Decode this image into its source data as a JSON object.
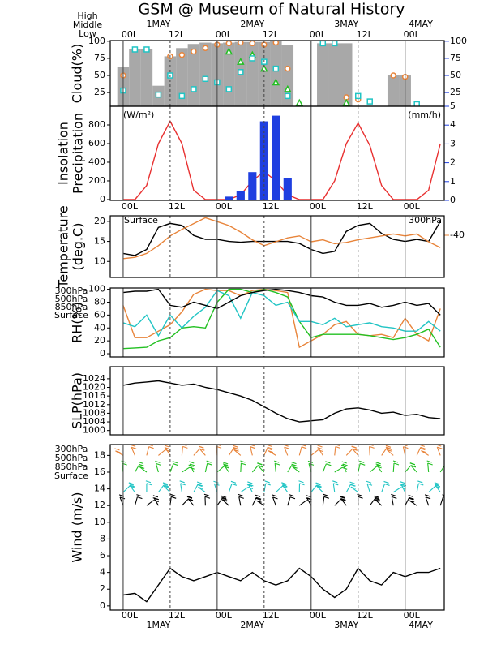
{
  "title": "GSM @ Museum of Natural History",
  "chart_data": [
    {
      "type": "cloud",
      "ylabel": [
        "Cloud(%)"
      ],
      "x": [
        0,
        3,
        6,
        9,
        12,
        15,
        18,
        21,
        24,
        27,
        30,
        33,
        36,
        39,
        42,
        45,
        48,
        51,
        54,
        57,
        60,
        63,
        66,
        69,
        72,
        75,
        78,
        81
      ],
      "xlim": [
        -3.3,
        82
      ],
      "xticks": [
        {
          "value": 0,
          "label": "00L"
        },
        {
          "value": 12,
          "label": "12L"
        },
        {
          "value": 24,
          "label": "00L"
        },
        {
          "value": 36,
          "label": "12L"
        },
        {
          "value": 48,
          "label": "00L"
        },
        {
          "value": 60,
          "label": "12L"
        },
        {
          "value": 72,
          "label": "00L"
        }
      ],
      "dates": [
        {
          "value": 9,
          "label": "1MAY"
        },
        {
          "value": 33,
          "label": "2MAY"
        },
        {
          "value": 57,
          "label": "3MAY"
        },
        {
          "value": 76,
          "label": "4MAY"
        }
      ],
      "ylim": [
        5,
        101
      ],
      "yticks": [
        25,
        50,
        75,
        100
      ],
      "y2lim": [
        5,
        101
      ],
      "y2ticks": [
        5,
        25,
        50,
        75,
        100
      ],
      "color": "#a8a8a8",
      "values": [
        62,
        88,
        88,
        35,
        78,
        90,
        96,
        98,
        97,
        98,
        99,
        99,
        99,
        100,
        95,
        5,
        5,
        97,
        97,
        97,
        5,
        5,
        5,
        50,
        50,
        5,
        5,
        5
      ],
      "series": [
        {
          "name": "High",
          "color": "#e8843a",
          "values": [
            50,
            null,
            null,
            null,
            78,
            80,
            85,
            90,
            95,
            97,
            98,
            97,
            95,
            98,
            60,
            null,
            null,
            null,
            null,
            18,
            15,
            null,
            null,
            50,
            48,
            null,
            null,
            null
          ]
        },
        {
          "name": "Middle",
          "color": "#22c022",
          "values": [
            null,
            null,
            null,
            null,
            null,
            null,
            null,
            null,
            null,
            85,
            70,
            80,
            60,
            40,
            30,
            10,
            null,
            null,
            null,
            10,
            null,
            null,
            null,
            null,
            null,
            null,
            null,
            null
          ]
        },
        {
          "name": "Low",
          "color": "#20c4c4",
          "values": [
            28,
            88,
            88,
            22,
            50,
            20,
            30,
            45,
            40,
            30,
            55,
            75,
            70,
            60,
            20,
            null,
            null,
            97,
            97,
            null,
            20,
            12,
            null,
            null,
            null,
            8,
            null,
            null
          ]
        }
      ]
    },
    {
      "type": "insolation",
      "ylabel": [
        "Insolation",
        "Precipitation"
      ],
      "y_unit": "(W/m²)",
      "y2_unit": "(mm/h)",
      "x": [
        0,
        3,
        6,
        9,
        12,
        15,
        18,
        21,
        24,
        27,
        30,
        33,
        36,
        39,
        42,
        45,
        48,
        51,
        54,
        57,
        60,
        63,
        66,
        69,
        72,
        75,
        78,
        81
      ],
      "xlim": [
        -3.3,
        82
      ],
      "xticks": [
        {
          "value": 0,
          "label": "00L"
        },
        {
          "value": 12,
          "label": "12L"
        },
        {
          "value": 24,
          "label": "00L"
        },
        {
          "value": 36,
          "label": "12L"
        },
        {
          "value": 48,
          "label": "00L"
        },
        {
          "value": 60,
          "label": "12L"
        },
        {
          "value": 72,
          "label": "00L"
        }
      ],
      "ylim": [
        -9,
        1000
      ],
      "yticks": [
        0,
        200,
        400,
        600,
        800
      ],
      "y2lim": [
        0,
        5
      ],
      "y2ticks": [
        0,
        1,
        2,
        3,
        4
      ],
      "series": [
        {
          "color": "#e83030",
          "values": [
            0,
            0,
            150,
            600,
            840,
            600,
            100,
            0,
            0,
            0,
            50,
            200,
            300,
            200,
            50,
            0,
            0,
            0,
            200,
            600,
            820,
            580,
            150,
            0,
            0,
            0,
            100,
            600
          ]
        },
        {
          "color": "#1f3fe0",
          "axis": "y2",
          "values": [
            0,
            0,
            0,
            0,
            0,
            0,
            0,
            0,
            0,
            0.2,
            0.5,
            1.5,
            4.2,
            4.5,
            1.2,
            0,
            0,
            0,
            0,
            0,
            0,
            0,
            0,
            0,
            0,
            0,
            0,
            0
          ]
        }
      ]
    },
    {
      "type": "line",
      "ylabel": [
        "Temperature",
        "(deg.C)"
      ],
      "x": [
        0,
        3,
        6,
        9,
        12,
        15,
        18,
        21,
        24,
        27,
        30,
        33,
        36,
        39,
        42,
        45,
        48,
        51,
        54,
        57,
        60,
        63,
        66,
        69,
        72,
        75,
        78,
        81
      ],
      "xlim": [
        -3.3,
        82
      ],
      "xticks": [
        {
          "value": 0,
          "label": "00L"
        },
        {
          "value": 12,
          "label": "12L"
        },
        {
          "value": 24,
          "label": "00L"
        },
        {
          "value": 36,
          "label": "12L"
        },
        {
          "value": 48,
          "label": "00L"
        },
        {
          "value": 60,
          "label": "12L"
        },
        {
          "value": 72,
          "label": "00L"
        }
      ],
      "ylim": [
        6,
        21.4
      ],
      "yticks": [
        10,
        15,
        20
      ],
      "y2lim": [
        -46.5,
        -37
      ],
      "y2ticks": [
        -40
      ],
      "series": [
        {
          "name": "Surface",
          "color": "#000000",
          "values": [
            12,
            11.5,
            13,
            18.5,
            19.5,
            19,
            16.5,
            15.5,
            15.5,
            15,
            14.8,
            15,
            15,
            15,
            15,
            14.5,
            13,
            12,
            12.5,
            17.5,
            19,
            19.5,
            17,
            15.5,
            15,
            15.5,
            15,
            20
          ]
        },
        {
          "name": "300hPa",
          "color": "#e8843a",
          "axis": "y2",
          "values": [
            -43.6,
            -43.4,
            -42.8,
            -41.6,
            -40.1,
            -39.1,
            -38.2,
            -37.3,
            -37.9,
            -38.5,
            -39.5,
            -40.7,
            -41.6,
            -41.0,
            -40.4,
            -40.1,
            -41.0,
            -40.7,
            -41.3,
            -41.1,
            -40.7,
            -40.4,
            -40.1,
            -39.8,
            -40.1,
            -39.8,
            -41.0,
            -41.9
          ]
        }
      ]
    },
    {
      "type": "line",
      "ylabel": [
        "RH(%)"
      ],
      "x": [
        0,
        3,
        6,
        9,
        12,
        15,
        18,
        21,
        24,
        27,
        30,
        33,
        36,
        39,
        42,
        45,
        48,
        51,
        54,
        57,
        60,
        63,
        66,
        69,
        72,
        75,
        78,
        81
      ],
      "xlim": [
        -3.3,
        82
      ],
      "xticks": [
        {
          "value": 0,
          "label": "00L"
        },
        {
          "value": 12,
          "label": "12L"
        },
        {
          "value": 24,
          "label": "00L"
        },
        {
          "value": 36,
          "label": "12L"
        },
        {
          "value": 48,
          "label": "00L"
        },
        {
          "value": 60,
          "label": "12L"
        },
        {
          "value": 72,
          "label": "00L"
        }
      ],
      "ylim": [
        -5,
        102
      ],
      "yticks": [
        0,
        20,
        40,
        60,
        80,
        100
      ],
      "series": [
        {
          "name": "300hPa",
          "color": "#e8843a",
          "values": [
            75,
            25,
            25,
            35,
            45,
            65,
            92,
            100,
            98,
            98,
            90,
            98,
            100,
            98,
            95,
            10,
            20,
            30,
            45,
            50,
            30,
            28,
            30,
            25,
            55,
            30,
            20,
            70
          ]
        },
        {
          "name": "500hPa",
          "color": "#22c022",
          "values": [
            8,
            9,
            10,
            20,
            25,
            40,
            42,
            40,
            80,
            100,
            100,
            95,
            100,
            95,
            88,
            50,
            25,
            30,
            30,
            30,
            30,
            28,
            25,
            22,
            25,
            30,
            38,
            10
          ]
        },
        {
          "name": "850hPa",
          "color": "#20c4c4",
          "values": [
            48,
            42,
            60,
            28,
            60,
            40,
            58,
            72,
            98,
            90,
            55,
            95,
            90,
            75,
            80,
            50,
            50,
            45,
            55,
            42,
            45,
            48,
            42,
            40,
            35,
            35,
            50,
            35
          ]
        },
        {
          "name": "Surface",
          "color": "#000000",
          "values": [
            95,
            97,
            97,
            100,
            75,
            72,
            80,
            75,
            70,
            80,
            90,
            95,
            98,
            100,
            98,
            95,
            90,
            88,
            80,
            75,
            75,
            78,
            72,
            75,
            80,
            75,
            78,
            60
          ]
        }
      ]
    },
    {
      "type": "line",
      "ylabel": [
        "SLP(hPa)"
      ],
      "x": [
        0,
        3,
        6,
        9,
        12,
        15,
        18,
        21,
        24,
        27,
        30,
        33,
        36,
        39,
        42,
        45,
        48,
        51,
        54,
        57,
        60,
        63,
        66,
        69,
        72,
        75,
        78,
        81
      ],
      "xlim": [
        -3.3,
        82
      ],
      "xticks": [
        {
          "value": 0,
          "label": "00L"
        },
        {
          "value": 12,
          "label": "12L"
        },
        {
          "value": 24,
          "label": "00L"
        },
        {
          "value": 36,
          "label": "12L"
        },
        {
          "value": 48,
          "label": "00L"
        },
        {
          "value": 60,
          "label": "12L"
        },
        {
          "value": 72,
          "label": "00L"
        }
      ],
      "ylim": [
        998,
        1029.6
      ],
      "yticks": [
        1000,
        1004,
        1008,
        1012,
        1016,
        1020,
        1024
      ],
      "series": [
        {
          "color": "#000000",
          "values": [
            1021,
            1022,
            1022.5,
            1023,
            1022,
            1021,
            1021.5,
            1020,
            1019,
            1017.5,
            1016,
            1014,
            1011,
            1008,
            1005.5,
            1004,
            1004.5,
            1005,
            1008,
            1010,
            1010.5,
            1009.5,
            1008,
            1008.5,
            1007,
            1007.5,
            1006,
            1005.5
          ]
        }
      ]
    },
    {
      "type": "wind",
      "ylabel": [
        "Wind (m/s)"
      ],
      "x": [
        0,
        3,
        6,
        9,
        12,
        15,
        18,
        21,
        24,
        27,
        30,
        33,
        36,
        39,
        42,
        45,
        48,
        51,
        54,
        57,
        60,
        63,
        66,
        69,
        72,
        75,
        78,
        81
      ],
      "xlim": [
        -3.3,
        82
      ],
      "xticks": [
        {
          "value": 0,
          "label": "00L"
        },
        {
          "value": 12,
          "label": "12L"
        },
        {
          "value": 24,
          "label": "00L"
        },
        {
          "value": 36,
          "label": "12L"
        },
        {
          "value": 48,
          "label": "00L"
        },
        {
          "value": 60,
          "label": "12L"
        },
        {
          "value": 72,
          "label": "00L"
        }
      ],
      "dates": [
        {
          "value": 9,
          "label": "1MAY"
        },
        {
          "value": 33,
          "label": "2MAY"
        },
        {
          "value": 57,
          "label": "3MAY"
        },
        {
          "value": 76,
          "label": "4MAY"
        }
      ],
      "ylim": [
        -0.5,
        19.3
      ],
      "yticks": [
        0,
        2,
        4,
        6,
        8,
        10,
        12,
        14,
        16,
        18
      ],
      "legend": [
        {
          "name": "300hPa",
          "color": "#e8843a"
        },
        {
          "name": "500hPa",
          "color": "#22c022"
        },
        {
          "name": "850hPa",
          "color": "#20c4c4"
        },
        {
          "name": "Surface",
          "color": "#000000"
        }
      ],
      "series": [
        {
          "color": "#000000",
          "values": [
            1.3,
            1.5,
            0.5,
            2.5,
            4.5,
            3.5,
            3,
            3.5,
            4,
            3.5,
            3,
            4,
            3,
            2.5,
            3,
            4.5,
            3.5,
            2,
            1,
            2,
            4.5,
            3,
            2.5,
            4,
            3.5,
            4,
            4,
            4.5
          ]
        }
      ]
    }
  ]
}
